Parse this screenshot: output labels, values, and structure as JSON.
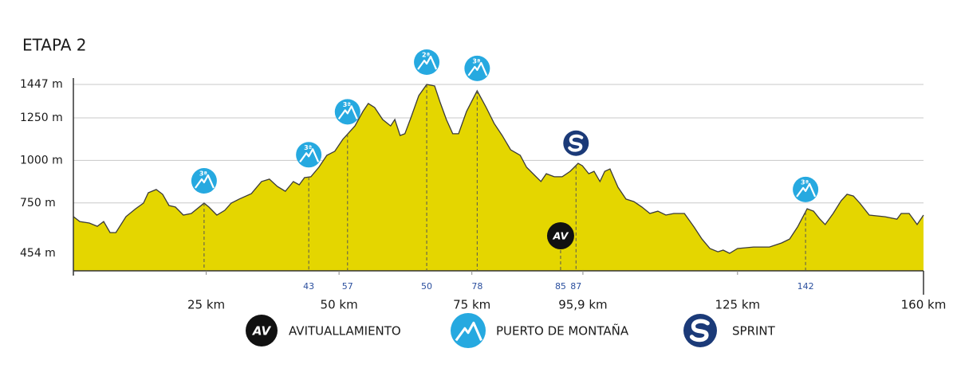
{
  "chart_data": {
    "type": "area",
    "title": "ETAPA 2",
    "x": [
      0,
      1.2,
      3.0,
      4.5,
      5.7,
      6.9,
      8.0,
      9.9,
      11.7,
      13.2,
      14.1,
      15.6,
      16.8,
      18.0,
      19.2,
      20.7,
      22.2,
      24.6,
      25.5,
      27.0,
      28.5,
      29.7,
      31.2,
      33.5,
      35.4,
      36.9,
      38.4,
      39.9,
      41.4,
      42.5,
      43.5,
      44.7,
      46.2,
      47.7,
      49.2,
      50.7,
      53.0,
      54.5,
      55.5,
      56.7,
      58.2,
      59.7,
      60.5,
      61.5,
      62.4,
      63.5,
      65.0,
      66.5,
      68.0,
      69.0,
      70.2,
      71.4,
      72.5,
      74.0,
      76.0,
      77.7,
      79.2,
      80.7,
      82.3,
      84.1,
      85.3,
      86.8,
      88.0,
      89.0,
      90.5,
      92.0,
      93.5,
      95.0,
      95.8,
      97.0,
      98.0,
      99.1,
      100.0,
      101.0,
      102.5,
      104.0,
      105.5,
      107.0,
      108.5,
      110.0,
      111.5,
      113.0,
      115.0,
      116.8,
      118.3,
      119.8,
      121.3,
      122.3,
      123.5,
      125.0,
      128.0,
      131.0,
      133.3,
      134.8,
      136.3,
      138.1,
      139.3,
      140.5,
      141.5,
      143.0,
      144.5,
      145.6,
      146.8,
      148.0,
      149.8,
      152.8,
      155.0,
      155.8,
      157.3,
      158.8,
      160
    ],
    "values": [
      670,
      641,
      632,
      613,
      641,
      576,
      576,
      670,
      716,
      749,
      810,
      829,
      801,
      735,
      726,
      679,
      688,
      749,
      726,
      679,
      707,
      749,
      773,
      805,
      876,
      890,
      847,
      819,
      876,
      857,
      899,
      904,
      960,
      1030,
      1054,
      1124,
      1203,
      1288,
      1335,
      1311,
      1241,
      1203,
      1241,
      1147,
      1157,
      1250,
      1381,
      1447,
      1438,
      1344,
      1241,
      1157,
      1157,
      1288,
      1410,
      1311,
      1217,
      1147,
      1063,
      1030,
      960,
      913,
      876,
      922,
      904,
      904,
      936,
      983,
      969,
      922,
      936,
      876,
      936,
      950,
      843,
      773,
      758,
      726,
      688,
      702,
      679,
      688,
      688,
      609,
      538,
      482,
      463,
      473,
      454,
      482,
      491,
      491,
      515,
      538,
      609,
      716,
      702,
      655,
      623,
      688,
      763,
      801,
      791,
      749,
      679,
      669,
      655,
      688,
      688,
      623,
      679
    ],
    "color": "#e4d600",
    "line_color": "#3a3a3a",
    "xlim": [
      0,
      160
    ],
    "ylim": [
      351,
      1447
    ],
    "xticks": [
      {
        "value": 25,
        "label": "25 km"
      },
      {
        "value": 50,
        "label": "50 km"
      },
      {
        "value": 75,
        "label": "75 km"
      },
      {
        "value": 95.9,
        "label": "95,9 km"
      },
      {
        "value": 125,
        "label": "125 km"
      },
      {
        "value": 160,
        "label": "160 km"
      }
    ],
    "yticks": [
      {
        "value": 454,
        "label": "454 m"
      },
      {
        "value": 750,
        "label": "750 m"
      },
      {
        "value": 1000,
        "label": "1000 m"
      },
      {
        "value": 1250,
        "label": "1250 m"
      },
      {
        "value": 1447,
        "label": "1447 m"
      }
    ],
    "grid": true,
    "markers": [
      {
        "x": 24.6,
        "kind": "climb",
        "icon_text": "3ª"
      },
      {
        "x": 44.3,
        "kind": "climb",
        "icon_text": "3ª",
        "label": 43
      },
      {
        "x": 51.6,
        "kind": "climb",
        "icon_text": "3ª",
        "label": 57
      },
      {
        "x": 66.5,
        "kind": "climb",
        "icon_text": "2ª",
        "label": 50
      },
      {
        "x": 76.0,
        "kind": "climb",
        "icon_text": "3ª",
        "label": 78
      },
      {
        "x": 91.7,
        "kind": "av",
        "icon_text": "AV",
        "label": 85
      },
      {
        "x": 94.6,
        "kind": "sprint",
        "label": 87
      },
      {
        "x": 137.8,
        "kind": "climb",
        "icon_text": "3ª",
        "label": 142
      }
    ],
    "legend": [
      {
        "kind": "av",
        "icon_text": "AV",
        "label": "AVITUALLAMIENTO"
      },
      {
        "kind": "climb",
        "label": "PUERTO DE MONTAÑA"
      },
      {
        "kind": "sprint",
        "label": "SPRINT"
      }
    ]
  }
}
